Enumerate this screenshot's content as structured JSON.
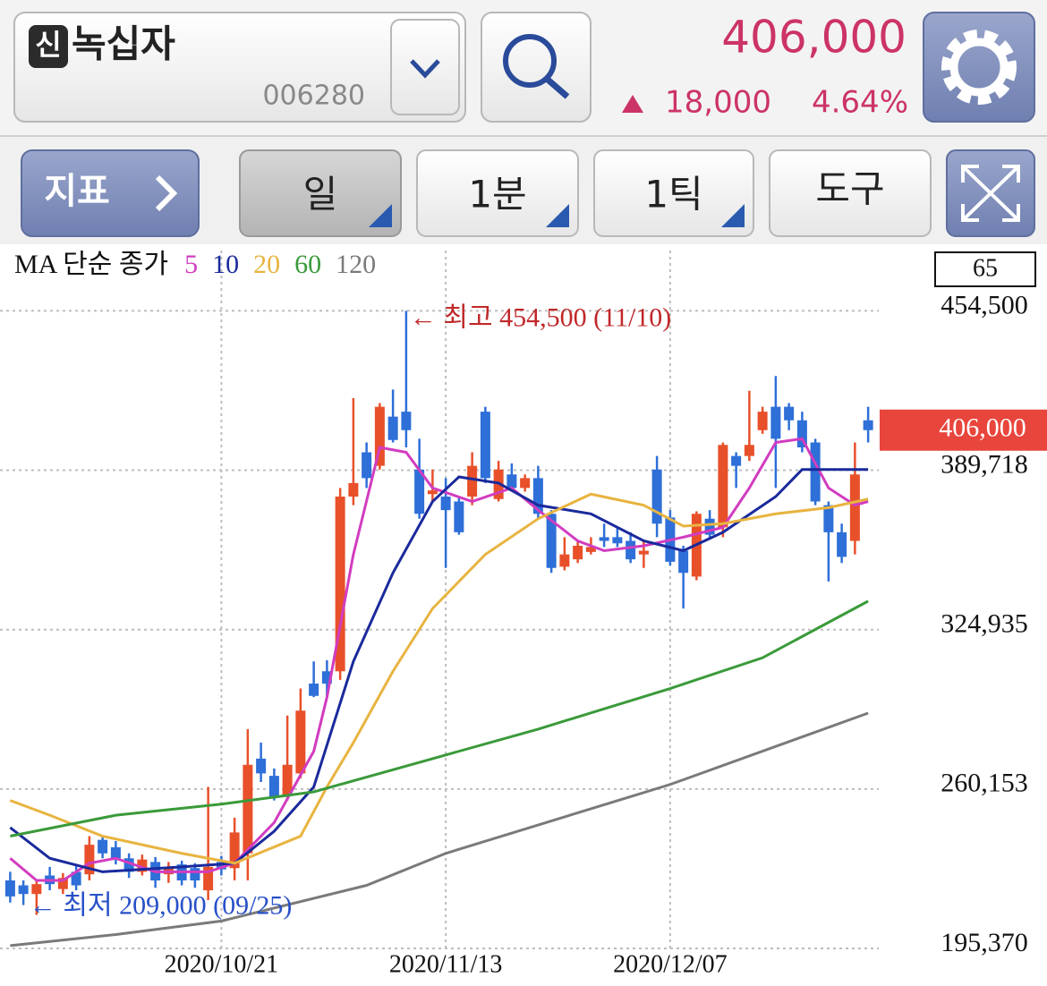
{
  "header": {
    "badge": "신",
    "name": "녹십자",
    "code": "006280",
    "price": "406,000",
    "change": "18,000",
    "change_pct": "4.64%"
  },
  "toolbar": {
    "indicator": "지표",
    "day": "일",
    "minute": "1분",
    "tick": "1틱",
    "tools": "도구"
  },
  "chart_data": {
    "type": "candlestick",
    "legend_prefix": "MA 단순 종가",
    "visible_count": 65,
    "categories": [
      null,
      null,
      null,
      null,
      null,
      null,
      null,
      null,
      null,
      null,
      null,
      null,
      null,
      null,
      null,
      null,
      "2020/10/21",
      null,
      null,
      null,
      null,
      null,
      null,
      null,
      null,
      null,
      null,
      null,
      null,
      null,
      null,
      null,
      null,
      "2020/11/13",
      null,
      null,
      null,
      null,
      null,
      null,
      null,
      null,
      null,
      null,
      null,
      null,
      null,
      null,
      null,
      null,
      "2020/12/07",
      null,
      null,
      null,
      null,
      null,
      null,
      null,
      null,
      null,
      null,
      null,
      null,
      null,
      null,
      null
    ],
    "open": [
      223000,
      221000,
      217500,
      225000,
      219500,
      226500,
      225500,
      239500,
      236500,
      232000,
      226500,
      230500,
      225500,
      229500,
      228000,
      219000,
      230500,
      228000,
      234000,
      272500,
      265500,
      257500,
      266500,
      303000,
      308000,
      308000,
      379000,
      397000,
      391500,
      411500,
      413500,
      390000,
      380000,
      379000,
      377000,
      379000,
      413500,
      378000,
      388000,
      382500,
      386500,
      372000,
      350500,
      353500,
      356500,
      362500,
      362500,
      361000,
      355500,
      390000,
      370500,
      357000,
      346500,
      370000,
      366500,
      395500,
      395500,
      406000,
      415500,
      415500,
      410000,
      401000,
      375500,
      364500,
      361000,
      410000
    ],
    "high": [
      226500,
      223000,
      223000,
      228500,
      226000,
      229000,
      241000,
      241000,
      239000,
      234000,
      233500,
      232500,
      230500,
      231000,
      230000,
      261000,
      233000,
      248500,
      284500,
      279000,
      268500,
      290000,
      301000,
      312000,
      312500,
      382500,
      419000,
      401000,
      417000,
      422500,
      454500,
      402500,
      390000,
      386500,
      379000,
      397000,
      415500,
      393500,
      392500,
      388000,
      391500,
      373500,
      362500,
      361000,
      362500,
      368000,
      366500,
      364500,
      361000,
      395500,
      373500,
      359000,
      373000,
      373500,
      401000,
      397000,
      422000,
      415500,
      428000,
      417000,
      413500,
      402500,
      377000,
      368000,
      401000,
      415500
    ],
    "low": [
      214000,
      213000,
      209000,
      219000,
      217500,
      219000,
      223000,
      232000,
      229500,
      224000,
      225000,
      220000,
      222000,
      221000,
      220000,
      215000,
      225000,
      223000,
      223000,
      263000,
      255500,
      255500,
      264500,
      297500,
      297500,
      304500,
      375500,
      382500,
      390000,
      401000,
      399000,
      370000,
      377000,
      350000,
      363500,
      375500,
      384500,
      377000,
      381000,
      381000,
      370000,
      348000,
      349000,
      352000,
      355500,
      358500,
      358500,
      352000,
      350000,
      362500,
      351000,
      333500,
      345000,
      362000,
      362500,
      382500,
      393500,
      404500,
      382500,
      406000,
      397000,
      375500,
      344500,
      352000,
      355500,
      401000
    ],
    "close": [
      216500,
      217500,
      221500,
      221500,
      224000,
      221000,
      237500,
      234000,
      232000,
      226500,
      231500,
      223000,
      228000,
      223000,
      223000,
      228500,
      227500,
      242500,
      270000,
      266500,
      256500,
      270000,
      292000,
      298000,
      303000,
      379000,
      384500,
      386500,
      415500,
      402000,
      406000,
      372000,
      381500,
      373500,
      364500,
      391500,
      386500,
      390000,
      382500,
      386500,
      372000,
      350000,
      355500,
      359000,
      358500,
      361000,
      360000,
      353500,
      357000,
      368000,
      352500,
      348000,
      372000,
      363500,
      400000,
      391500,
      400000,
      413500,
      402500,
      410000,
      399000,
      377000,
      364500,
      354500,
      388000,
      406000
    ],
    "up_color": "#e8502a",
    "down_color": "#2e6fd8",
    "series": [
      {
        "name": "5",
        "color": "#d23cc0",
        "x": [
          0,
          2,
          4,
          6,
          8,
          11,
          15,
          17,
          20,
          23,
          24,
          26,
          28,
          30,
          32,
          35,
          38,
          40,
          43,
          45,
          48,
          51,
          54,
          56,
          58,
          60,
          62,
          64,
          65
        ],
        "values": [
          232000,
          223000,
          223000,
          230000,
          232000,
          226500,
          226500,
          230000,
          246500,
          275500,
          297500,
          355500,
          399000,
          397000,
          382500,
          377000,
          382500,
          373500,
          361000,
          357000,
          359000,
          362500,
          366500,
          382500,
          401000,
          402500,
          382500,
          375500,
          377000
        ]
      },
      {
        "name": "10",
        "color": "#1a2a9c",
        "x": [
          0,
          3,
          7,
          13,
          17,
          20,
          23,
          26,
          29,
          32,
          34,
          37,
          40,
          44,
          48,
          51,
          54,
          58,
          60,
          65
        ],
        "values": [
          244500,
          232000,
          226500,
          228500,
          230000,
          243000,
          261000,
          312000,
          348000,
          377000,
          387000,
          384500,
          375500,
          372000,
          361000,
          357000,
          364500,
          379000,
          390000,
          390000
        ]
      },
      {
        "name": "20",
        "color": "#e8b440",
        "x": [
          0,
          3,
          7,
          13,
          17,
          22,
          24,
          26,
          29,
          32,
          36,
          40,
          44,
          48,
          51,
          54,
          58,
          62,
          65
        ],
        "values": [
          255500,
          249500,
          241000,
          234000,
          230000,
          241000,
          261000,
          279000,
          308000,
          333500,
          355500,
          370000,
          380000,
          375500,
          367000,
          368000,
          372000,
          374500,
          378000
        ]
      },
      {
        "name": "60",
        "color": "#3a9a3a",
        "x": [
          0,
          8,
          16,
          23,
          33,
          40,
          50,
          57,
          65
        ],
        "values": [
          241000,
          249500,
          254000,
          259000,
          274000,
          284500,
          301000,
          313500,
          336500
        ]
      },
      {
        "name": "120",
        "color": "#7a7a7a",
        "x": [
          0,
          8,
          16,
          27,
          33,
          50,
          65
        ],
        "values": [
          196500,
          201000,
          206500,
          221000,
          234000,
          262000,
          291000
        ]
      }
    ],
    "ylim": [
      195370,
      479000
    ],
    "yticks": [
      {
        "value": 195370,
        "label": "195,370"
      },
      {
        "value": 260153,
        "label": "260,153"
      },
      {
        "value": 324935,
        "label": "324,935"
      },
      {
        "value": 389718,
        "label": "389,718"
      },
      {
        "value": 454500,
        "label": "454,500"
      }
    ],
    "current_price": {
      "value": 406000,
      "label": "406,000"
    },
    "high_annotation": "← 최고 454,500 (11/10)",
    "low_annotation": "← 최저 209,000 (09/25)",
    "grid": true
  }
}
